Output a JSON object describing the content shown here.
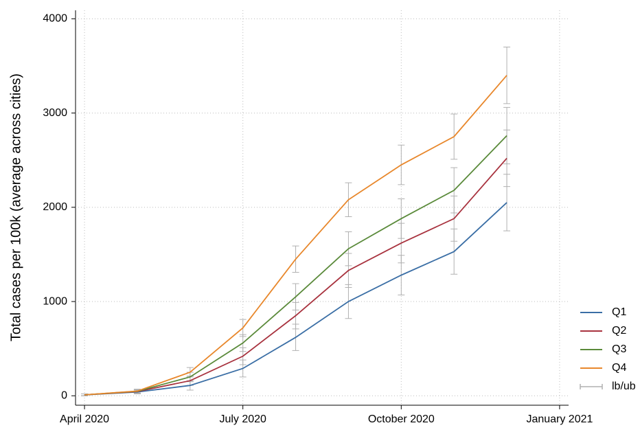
{
  "chart_data": {
    "type": "line",
    "x": [
      "2020-04",
      "2020-05",
      "2020-06",
      "2020-07",
      "2020-08",
      "2020-09",
      "2020-10",
      "2020-11",
      "2020-12"
    ],
    "xlim": [
      "2020-04",
      "2021-01"
    ],
    "xticks": [
      {
        "value": "2020-04",
        "label": "April 2020"
      },
      {
        "value": "2020-07",
        "label": "July 2020"
      },
      {
        "value": "2020-10",
        "label": "October 2020"
      },
      {
        "value": "2021-01",
        "label": "January 2021"
      }
    ],
    "ylabel": "Total cases per 100k (average across cities)",
    "ylim": [
      -100,
      4090
    ],
    "yticks": [
      0,
      1000,
      2000,
      3000,
      4000
    ],
    "grid": true,
    "legend": "right",
    "interval_label": "lb/ub",
    "interval_color": "#b0b0b0",
    "series": [
      {
        "name": "Q1",
        "color": "#3a6ea5",
        "values": [
          10,
          40,
          110,
          290,
          620,
          1000,
          1280,
          1530,
          2050
        ],
        "lower": [
          0,
          20,
          60,
          200,
          480,
          820,
          1070,
          1290,
          1750
        ],
        "upper": [
          20,
          60,
          160,
          380,
          760,
          1180,
          1490,
          1770,
          2350
        ]
      },
      {
        "name": "Q2",
        "color": "#a8323e",
        "values": [
          10,
          45,
          160,
          420,
          850,
          1330,
          1620,
          1880,
          2520
        ],
        "lower": [
          0,
          25,
          110,
          330,
          710,
          1150,
          1410,
          1640,
          2220
        ],
        "upper": [
          20,
          65,
          210,
          510,
          990,
          1510,
          1830,
          2120,
          2820
        ]
      },
      {
        "name": "Q3",
        "color": "#5a8a3a",
        "values": [
          10,
          48,
          200,
          560,
          1050,
          1560,
          1880,
          2180,
          2760
        ],
        "lower": [
          0,
          28,
          150,
          470,
          910,
          1380,
          1670,
          1940,
          2460
        ],
        "upper": [
          20,
          68,
          250,
          650,
          1190,
          1740,
          2090,
          2420,
          3060
        ]
      },
      {
        "name": "Q4",
        "color": "#e8872b",
        "values": [
          10,
          50,
          250,
          720,
          1450,
          2080,
          2450,
          2750,
          3400
        ],
        "lower": [
          0,
          30,
          200,
          630,
          1310,
          1900,
          2240,
          2510,
          3100
        ],
        "upper": [
          20,
          70,
          300,
          810,
          1590,
          2260,
          2660,
          2990,
          3700
        ]
      }
    ]
  }
}
